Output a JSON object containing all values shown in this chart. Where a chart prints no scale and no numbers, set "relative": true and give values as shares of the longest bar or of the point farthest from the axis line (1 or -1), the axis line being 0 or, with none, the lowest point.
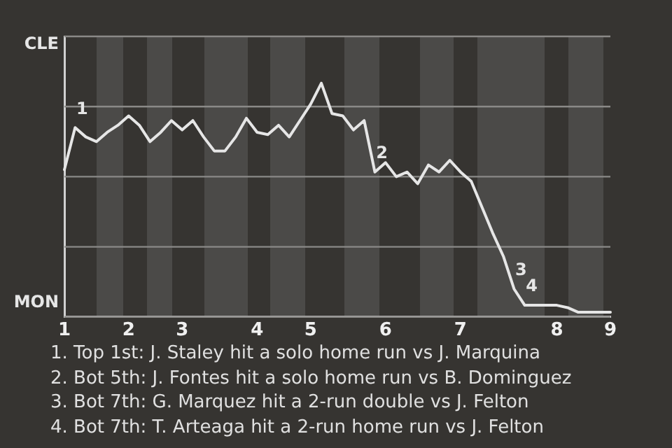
{
  "chart_data": {
    "type": "line",
    "relative": true,
    "categories": [
      "1",
      null,
      null,
      null,
      null,
      null,
      "2",
      null,
      null,
      null,
      null,
      "3",
      null,
      null,
      null,
      null,
      null,
      null,
      "4",
      null,
      null,
      null,
      null,
      "5",
      null,
      null,
      null,
      null,
      null,
      null,
      "6",
      null,
      null,
      null,
      null,
      null,
      null,
      "7",
      null,
      null,
      null,
      null,
      null,
      null,
      null,
      null,
      "8",
      null,
      null,
      null,
      null,
      "9"
    ],
    "grid": "y",
    "marker": "none",
    "line_style": "solid",
    "series": [
      {
        "color": "#e6e6e6",
        "values": [
          0.63,
          0.81,
          0.77,
          0.75,
          0.79,
          0.82,
          0.86,
          0.82,
          0.75,
          0.79,
          0.84,
          0.8,
          0.84,
          0.77,
          0.71,
          0.71,
          0.77,
          0.85,
          0.79,
          0.78,
          0.82,
          0.77,
          0.84,
          0.91,
          1,
          0.87,
          0.86,
          0.8,
          0.84,
          0.62,
          0.66,
          0.6,
          0.62,
          0.57,
          0.65,
          0.62,
          0.67,
          0.62,
          0.58,
          0.47,
          0.36,
          0.26,
          0.12,
          0.05,
          0.05,
          0.05,
          0.05,
          0.04,
          0.02,
          0.02,
          0.02,
          0.02
        ]
      }
    ],
    "annotations": [
      "CLE",
      "MON",
      "1",
      "2",
      "3",
      "4",
      "1. Top 1st: J. Staley hit a solo home run vs J. Marquina",
      "2. Bot 5th: J. Fontes hit a solo home run vs B. Dominguez",
      "3. Bot 7th: G. Marquez hit a 2-run double vs J. Felton",
      "4. Bot 7th: T. Arteaga hit a 2-run home run vs J. Felton"
    ]
  }
}
